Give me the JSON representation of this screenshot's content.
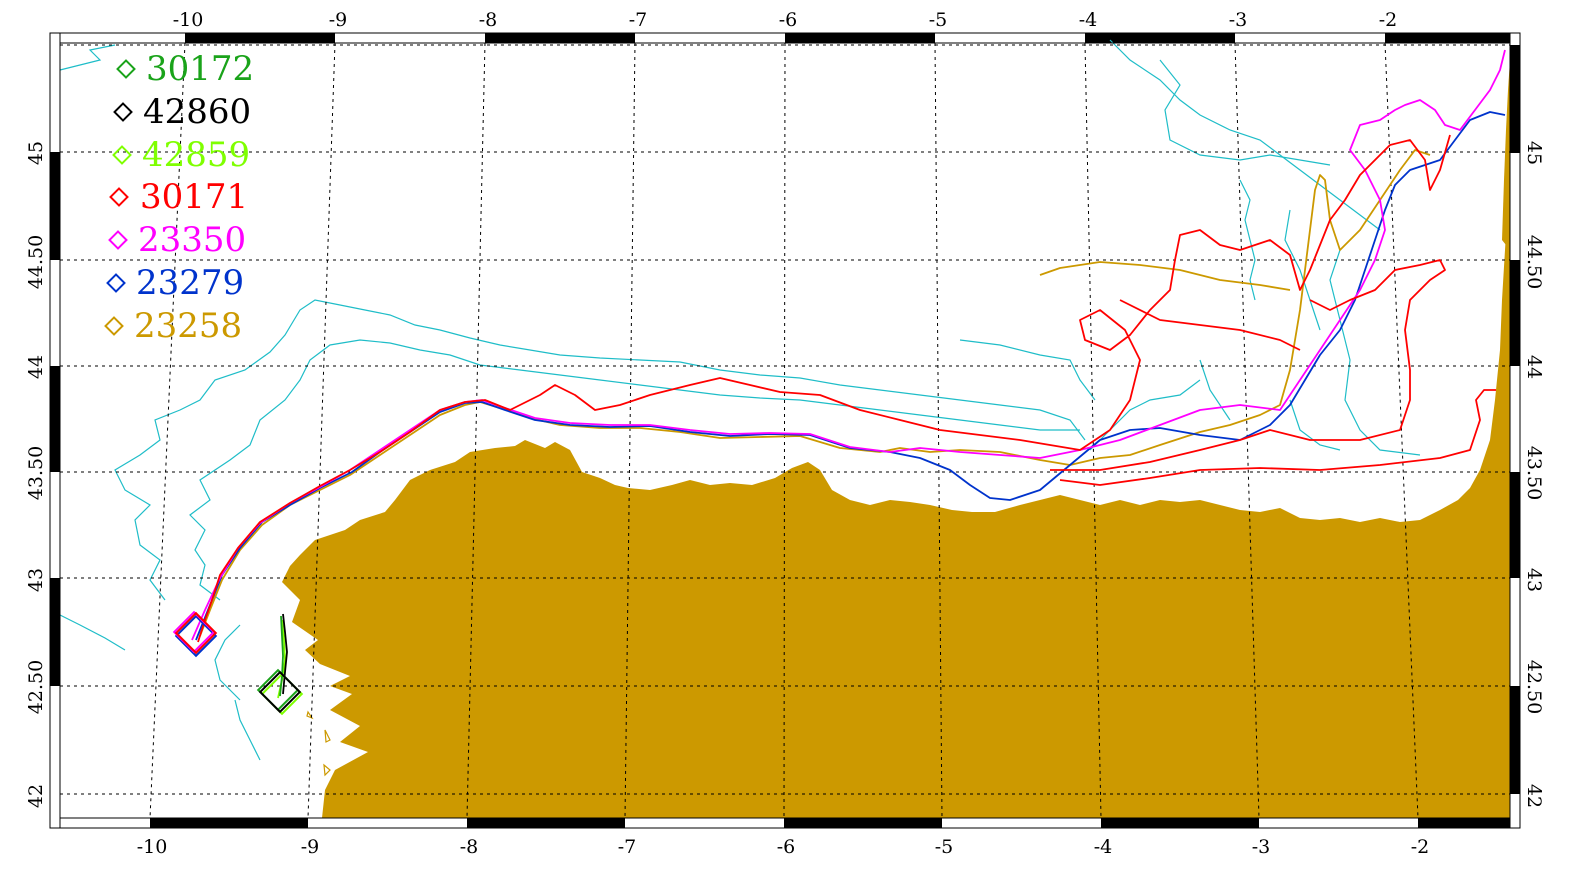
{
  "map": {
    "colors": {
      "land": "#cc9900",
      "isobath": "#1fbdc8",
      "grid": "#000000",
      "frame": "#000000"
    },
    "top_ticks": [
      "-10",
      "-9",
      "-8",
      "-7",
      "-6",
      "-5",
      "-4",
      "-3",
      "-2"
    ],
    "bottom_ticks": [
      "-10",
      "-9",
      "-8",
      "-7",
      "-6",
      "-5",
      "-4",
      "-3",
      "-2"
    ],
    "left_ticks": [
      "45",
      "44.50",
      "44",
      "43.50",
      "43",
      "42.50",
      "42"
    ],
    "right_ticks": [
      "45",
      "44.50",
      "44",
      "43.50",
      "43",
      "42.50",
      "42"
    ],
    "legend": [
      {
        "id": "30172",
        "label": "30172",
        "color": "#1aa31a"
      },
      {
        "id": "42860",
        "label": "42860",
        "color": "#000000"
      },
      {
        "id": "42859",
        "label": "42859",
        "color": "#7fff00"
      },
      {
        "id": "30171",
        "label": "30171",
        "color": "#ff0000"
      },
      {
        "id": "23350",
        "label": "23350",
        "color": "#ff00ff"
      },
      {
        "id": "23279",
        "label": "23279",
        "color": "#0033cc"
      },
      {
        "id": "23258",
        "label": "23258",
        "color": "#cc9900"
      }
    ]
  }
}
